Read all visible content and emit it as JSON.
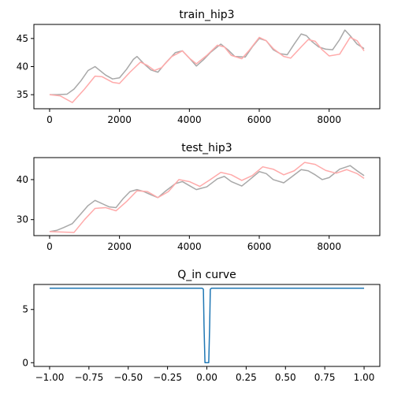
{
  "figure": {
    "background": "#ffffff"
  },
  "chart_data": [
    {
      "type": "line",
      "title": "train_hip3",
      "xlabel": "",
      "ylabel": "",
      "xlim": [
        -450,
        9450
      ],
      "ylim": [
        32.5,
        47.5
      ],
      "xticks": [
        0,
        2000,
        4000,
        6000,
        8000
      ],
      "xtick_labels": [
        "0",
        "2000",
        "4000",
        "6000",
        "8000"
      ],
      "yticks": [
        35,
        40,
        45
      ],
      "ytick_labels": [
        "35",
        "40",
        "45"
      ],
      "grid": false,
      "series": [
        {
          "color": "#a8a8a8",
          "x": [
            0,
            200,
            500,
            700,
            900,
            1100,
            1300,
            1400,
            1600,
            1800,
            2000,
            2200,
            2400,
            2500,
            2700,
            2900,
            3100,
            3300,
            3600,
            3800,
            4000,
            4200,
            4400,
            4600,
            4900,
            5100,
            5300,
            5600,
            5800,
            6000,
            6200,
            6400,
            6600,
            6800,
            7000,
            7200,
            7350,
            7500,
            7700,
            7900,
            8100,
            8300,
            8450,
            8600,
            8800,
            9000
          ],
          "y": [
            35.0,
            35.0,
            35.1,
            36.0,
            37.5,
            39.3,
            40.0,
            39.5,
            38.5,
            37.8,
            38.0,
            39.5,
            41.3,
            41.8,
            40.5,
            39.4,
            39.0,
            40.5,
            42.5,
            42.8,
            41.5,
            40.1,
            41.2,
            42.5,
            44.0,
            43.0,
            41.8,
            41.7,
            43.5,
            45.0,
            44.6,
            43.0,
            42.3,
            42.1,
            44.0,
            45.8,
            45.5,
            44.5,
            43.5,
            43.1,
            43.0,
            44.8,
            46.5,
            45.5,
            44.0,
            43.2
          ]
        },
        {
          "color": "#ffaaaa",
          "x": [
            0,
            300,
            650,
            1000,
            1300,
            1500,
            1800,
            2000,
            2300,
            2600,
            2800,
            3000,
            3200,
            3500,
            3800,
            4000,
            4200,
            4500,
            4800,
            5000,
            5200,
            5500,
            5700,
            6000,
            6200,
            6400,
            6700,
            6900,
            7200,
            7400,
            7600,
            7800,
            8000,
            8300,
            8600,
            8800,
            9000
          ],
          "y": [
            35.0,
            34.8,
            33.6,
            36.0,
            38.3,
            38.2,
            37.2,
            37.0,
            39.0,
            40.8,
            40.2,
            39.3,
            39.8,
            41.8,
            42.8,
            41.5,
            40.5,
            42.0,
            43.8,
            43.5,
            42.0,
            41.4,
            42.8,
            45.2,
            44.6,
            43.2,
            41.8,
            41.5,
            43.5,
            44.8,
            44.5,
            43.0,
            41.9,
            42.2,
            45.2,
            44.6,
            42.8
          ]
        }
      ]
    },
    {
      "type": "line",
      "title": "test_hip3",
      "xlabel": "",
      "ylabel": "",
      "xlim": [
        -450,
        9450
      ],
      "ylim": [
        26,
        45.5
      ],
      "xticks": [
        0,
        2000,
        4000,
        6000,
        8000
      ],
      "xtick_labels": [
        "0",
        "2000",
        "4000",
        "6000",
        "8000"
      ],
      "yticks": [
        30,
        40
      ],
      "ytick_labels": [
        "30",
        "40"
      ],
      "grid": false,
      "series": [
        {
          "color": "#a8a8a8",
          "x": [
            0,
            200,
            400,
            650,
            900,
            1100,
            1300,
            1500,
            1700,
            1900,
            2100,
            2300,
            2500,
            2700,
            2900,
            3100,
            3300,
            3600,
            3800,
            4000,
            4200,
            4500,
            4800,
            5000,
            5200,
            5500,
            5700,
            6000,
            6200,
            6400,
            6700,
            6900,
            7200,
            7400,
            7600,
            7800,
            8000,
            8300,
            8600,
            8800,
            9000
          ],
          "y": [
            27.0,
            27.3,
            28.0,
            29.0,
            31.5,
            33.5,
            34.8,
            34.0,
            33.2,
            33.0,
            35.2,
            37.0,
            37.5,
            37.0,
            36.2,
            35.5,
            37.0,
            39.0,
            39.5,
            38.5,
            37.5,
            38.2,
            40.2,
            40.8,
            39.5,
            38.4,
            39.8,
            42.0,
            41.5,
            40.0,
            39.2,
            40.5,
            42.5,
            42.2,
            41.2,
            40.0,
            40.5,
            42.6,
            43.5,
            42.2,
            41.0
          ]
        },
        {
          "color": "#ffaaaa",
          "x": [
            0,
            300,
            700,
            1000,
            1300,
            1600,
            1900,
            2200,
            2500,
            2800,
            3100,
            3400,
            3700,
            4000,
            4300,
            4600,
            4900,
            5200,
            5500,
            5800,
            6100,
            6400,
            6700,
            7000,
            7300,
            7600,
            7900,
            8200,
            8500,
            8800,
            9000
          ],
          "y": [
            27.0,
            26.9,
            26.8,
            30.0,
            32.8,
            33.0,
            32.2,
            34.5,
            37.2,
            37.0,
            35.5,
            37.0,
            40.0,
            39.5,
            38.3,
            40.0,
            41.8,
            41.2,
            39.8,
            41.0,
            43.2,
            42.6,
            41.2,
            42.2,
            44.3,
            43.8,
            42.3,
            41.6,
            42.5,
            41.5,
            40.3
          ]
        }
      ]
    },
    {
      "type": "line",
      "title": "Q_in curve",
      "xlabel": "",
      "ylabel": "",
      "xlim": [
        -1.1,
        1.1
      ],
      "ylim": [
        -0.35,
        7.35
      ],
      "xticks": [
        -1.0,
        -0.75,
        -0.5,
        -0.25,
        0.0,
        0.25,
        0.5,
        0.75,
        1.0
      ],
      "xtick_labels": [
        "−1.00",
        "−0.75",
        "−0.50",
        "−0.25",
        "0.00",
        "0.25",
        "0.50",
        "0.75",
        "1.00"
      ],
      "yticks": [
        0,
        5
      ],
      "ytick_labels": [
        "0",
        "5"
      ],
      "grid": false,
      "series": [
        {
          "color": "#1f77b4",
          "x": [
            -1.0,
            -0.03,
            -0.022,
            -0.018,
            -0.012,
            0.012,
            0.018,
            0.022,
            0.03,
            1.0
          ],
          "y": [
            7.0,
            7.0,
            6.9,
            3.5,
            0.0,
            0.0,
            3.5,
            6.9,
            7.0,
            7.0
          ]
        }
      ]
    }
  ]
}
